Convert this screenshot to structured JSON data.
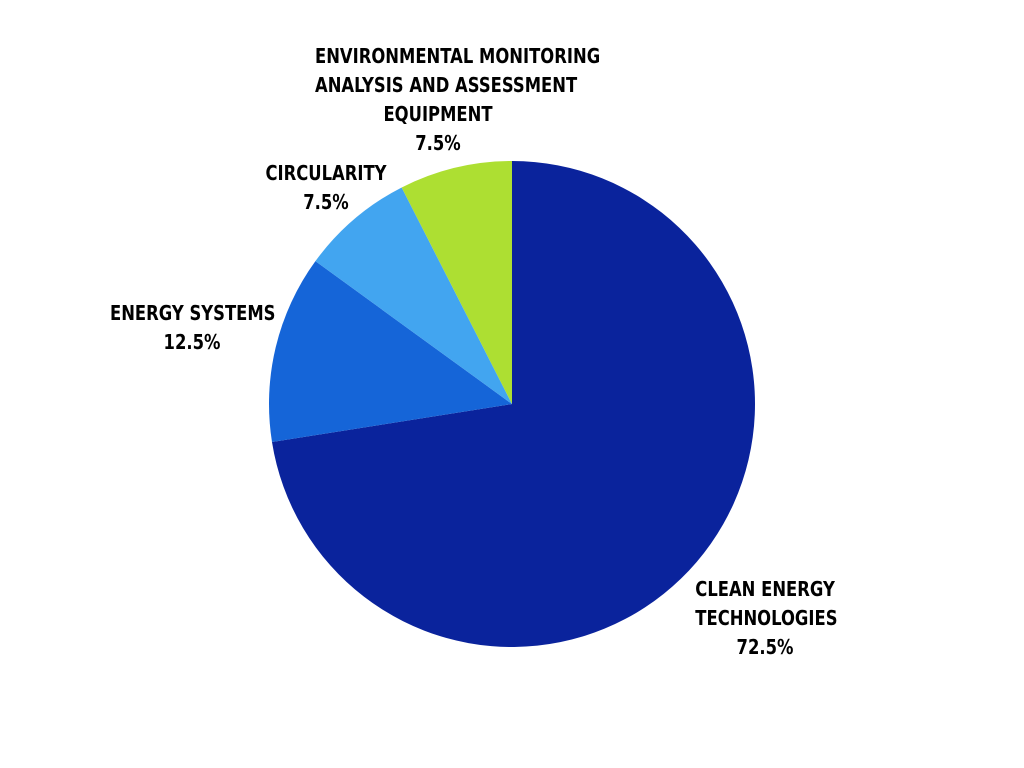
{
  "chart_data": {
    "type": "pie",
    "start_angle": "12 o'clock",
    "direction": "clockwise",
    "legend": "none",
    "slices": [
      {
        "label_lines": [
          "CLEAN ENERGY",
          "TECHNOLOGIES"
        ],
        "value": 72.5,
        "value_label": "72.5%",
        "color": "#0a239c"
      },
      {
        "label_lines": [
          "ENERGY SYSTEMS"
        ],
        "value": 12.5,
        "value_label": "12.5%",
        "color": "#1565d8"
      },
      {
        "label_lines": [
          "CIRCULARITY"
        ],
        "value": 7.5,
        "value_label": "7.5%",
        "color": "#42a5f0"
      },
      {
        "label_lines": [
          "ENVIRONMENTAL MONITORING",
          "ANALYSIS AND ASSESSMENT",
          "EQUIPMENT"
        ],
        "value": 7.5,
        "value_label": "7.5%",
        "color": "#addf32"
      }
    ]
  }
}
